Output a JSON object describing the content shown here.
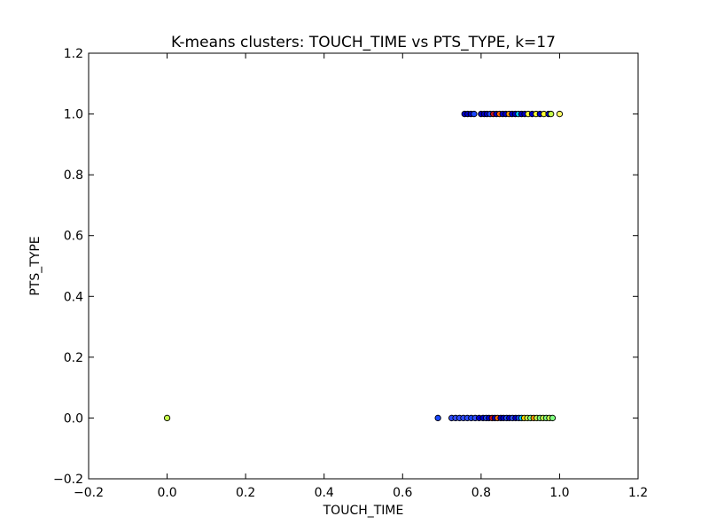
{
  "chart_data": {
    "type": "scatter",
    "title": "K-means clusters: TOUCH_TIME vs PTS_TYPE, k=17",
    "xlabel": "TOUCH_TIME",
    "ylabel": "PTS_TYPE",
    "xlim": [
      -0.2,
      1.2
    ],
    "ylim": [
      -0.2,
      1.2
    ],
    "xticks": [
      -0.2,
      0.0,
      0.2,
      0.4,
      0.6,
      0.8,
      1.0,
      1.2
    ],
    "yticks": [
      -0.2,
      0.0,
      0.2,
      0.4,
      0.6,
      0.8,
      1.0,
      1.2
    ],
    "xtick_labels": [
      "−0.2",
      "0.0",
      "0.2",
      "0.4",
      "0.6",
      "0.8",
      "1.0",
      "1.2"
    ],
    "ytick_labels": [
      "−0.2",
      "0.0",
      "0.2",
      "0.4",
      "0.6",
      "0.8",
      "1.0",
      "1.2"
    ],
    "grid": false,
    "marker_edge_color": "#000000",
    "points": [
      {
        "x": 0.0,
        "y": 0.0,
        "color": "#c4ff4a"
      },
      {
        "x": 0.69,
        "y": 0.0,
        "color": "#1a47ff"
      },
      {
        "x": 0.725,
        "y": 0.0,
        "color": "#2f4cff"
      },
      {
        "x": 0.735,
        "y": 0.0,
        "color": "#2f4cff"
      },
      {
        "x": 0.745,
        "y": 0.0,
        "color": "#2f4cff"
      },
      {
        "x": 0.755,
        "y": 0.0,
        "color": "#2f4cff"
      },
      {
        "x": 0.765,
        "y": 0.0,
        "color": "#2f4cff"
      },
      {
        "x": 0.775,
        "y": 0.0,
        "color": "#1a47ff"
      },
      {
        "x": 0.785,
        "y": 0.0,
        "color": "#2f4cff"
      },
      {
        "x": 0.795,
        "y": 0.0,
        "color": "#0000c8"
      },
      {
        "x": 0.805,
        "y": 0.0,
        "color": "#0000c8"
      },
      {
        "x": 0.813,
        "y": 0.0,
        "color": "#1a47ff"
      },
      {
        "x": 0.82,
        "y": 0.0,
        "color": "#0000c8"
      },
      {
        "x": 0.828,
        "y": 0.0,
        "color": "#c8141e"
      },
      {
        "x": 0.835,
        "y": 0.0,
        "color": "#0000c8"
      },
      {
        "x": 0.842,
        "y": 0.0,
        "color": "#ff6600"
      },
      {
        "x": 0.85,
        "y": 0.0,
        "color": "#0000c8"
      },
      {
        "x": 0.857,
        "y": 0.0,
        "color": "#0000c8"
      },
      {
        "x": 0.865,
        "y": 0.0,
        "color": "#1a47ff"
      },
      {
        "x": 0.872,
        "y": 0.0,
        "color": "#0000c8"
      },
      {
        "x": 0.88,
        "y": 0.0,
        "color": "#2f4cff"
      },
      {
        "x": 0.888,
        "y": 0.0,
        "color": "#0000c8"
      },
      {
        "x": 0.896,
        "y": 0.0,
        "color": "#1a47ff"
      },
      {
        "x": 0.903,
        "y": 0.0,
        "color": "#00c8ff"
      },
      {
        "x": 0.91,
        "y": 0.0,
        "color": "#ffd700"
      },
      {
        "x": 0.918,
        "y": 0.0,
        "color": "#c4ff4a"
      },
      {
        "x": 0.926,
        "y": 0.0,
        "color": "#7fff7f"
      },
      {
        "x": 0.934,
        "y": 0.0,
        "color": "#ff9900"
      },
      {
        "x": 0.942,
        "y": 0.0,
        "color": "#c4ff4a"
      },
      {
        "x": 0.95,
        "y": 0.0,
        "color": "#7fff7f"
      },
      {
        "x": 0.958,
        "y": 0.0,
        "color": "#c4ff4a"
      },
      {
        "x": 0.966,
        "y": 0.0,
        "color": "#7fff7f"
      },
      {
        "x": 0.974,
        "y": 0.0,
        "color": "#c4ff4a"
      },
      {
        "x": 0.982,
        "y": 0.0,
        "color": "#7fff7f"
      },
      {
        "x": 0.758,
        "y": 1.0,
        "color": "#0000c8"
      },
      {
        "x": 0.766,
        "y": 1.0,
        "color": "#0000c8"
      },
      {
        "x": 0.774,
        "y": 1.0,
        "color": "#0000c8"
      },
      {
        "x": 0.782,
        "y": 1.0,
        "color": "#1a47ff"
      },
      {
        "x": 0.8,
        "y": 1.0,
        "color": "#0000c8"
      },
      {
        "x": 0.808,
        "y": 1.0,
        "color": "#0000c8"
      },
      {
        "x": 0.815,
        "y": 1.0,
        "color": "#0000c8"
      },
      {
        "x": 0.823,
        "y": 1.0,
        "color": "#1a47ff"
      },
      {
        "x": 0.831,
        "y": 1.0,
        "color": "#c8141e"
      },
      {
        "x": 0.839,
        "y": 1.0,
        "color": "#0000c8"
      },
      {
        "x": 0.847,
        "y": 1.0,
        "color": "#ff6600"
      },
      {
        "x": 0.855,
        "y": 1.0,
        "color": "#0000c8"
      },
      {
        "x": 0.863,
        "y": 1.0,
        "color": "#0000c8"
      },
      {
        "x": 0.871,
        "y": 1.0,
        "color": "#ff9900"
      },
      {
        "x": 0.879,
        "y": 1.0,
        "color": "#0000c8"
      },
      {
        "x": 0.887,
        "y": 1.0,
        "color": "#0000c8"
      },
      {
        "x": 0.895,
        "y": 1.0,
        "color": "#00c8ff"
      },
      {
        "x": 0.903,
        "y": 1.0,
        "color": "#0000c8"
      },
      {
        "x": 0.911,
        "y": 1.0,
        "color": "#0000c8"
      },
      {
        "x": 0.92,
        "y": 1.0,
        "color": "#ffff33"
      },
      {
        "x": 0.93,
        "y": 1.0,
        "color": "#0000c8"
      },
      {
        "x": 0.94,
        "y": 1.0,
        "color": "#ffff33"
      },
      {
        "x": 0.95,
        "y": 1.0,
        "color": "#0000c8"
      },
      {
        "x": 0.96,
        "y": 1.0,
        "color": "#ffff33"
      },
      {
        "x": 0.972,
        "y": 1.0,
        "color": "#0000c8"
      },
      {
        "x": 0.978,
        "y": 1.0,
        "color": "#c4ff4a"
      },
      {
        "x": 1.0,
        "y": 1.0,
        "color": "#ffff66"
      }
    ]
  }
}
